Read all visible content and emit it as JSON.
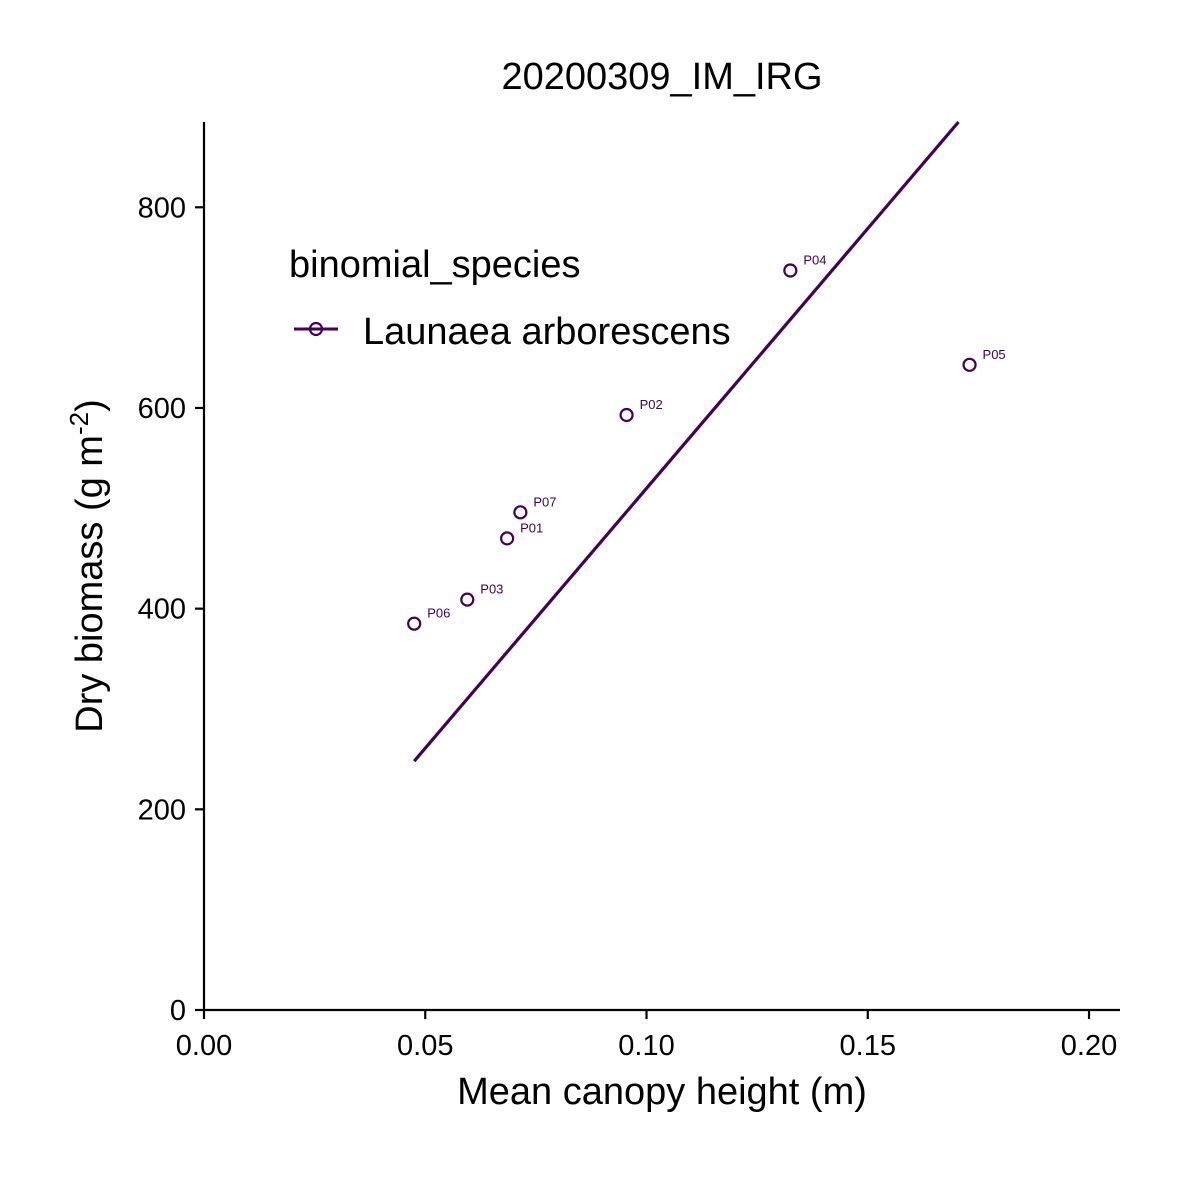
{
  "chart_data": {
    "type": "scatter",
    "title": "20200309_IM_IRG",
    "xlabel": "Mean canopy height (m)",
    "ylabel_main": "Dry biomass (g m",
    "ylabel_sup": "-2",
    "ylabel_close": ")",
    "xlim": [
      0.0,
      0.207
    ],
    "ylim": [
      0,
      885
    ],
    "x_ticks": [
      0.0,
      0.05,
      0.1,
      0.15,
      0.2
    ],
    "x_tick_labels": [
      "0.00",
      "0.05",
      "0.10",
      "0.15",
      "0.20"
    ],
    "y_ticks": [
      0,
      200,
      400,
      600,
      800
    ],
    "y_tick_labels": [
      "0",
      "200",
      "400",
      "600",
      "800"
    ],
    "grid": false,
    "legend": {
      "title": "binomial_species",
      "placement": "top-left",
      "entries": [
        "Launaea arborescens"
      ]
    },
    "series": [
      {
        "name": "Launaea arborescens",
        "color": "#440154",
        "points": [
          {
            "label": "P01",
            "x": 0.0685,
            "y": 470
          },
          {
            "label": "P02",
            "x": 0.0955,
            "y": 593
          },
          {
            "label": "P03",
            "x": 0.0595,
            "y": 409
          },
          {
            "label": "P04",
            "x": 0.1325,
            "y": 737
          },
          {
            "label": "P05",
            "x": 0.173,
            "y": 643
          },
          {
            "label": "P06",
            "x": 0.0475,
            "y": 385
          },
          {
            "label": "P07",
            "x": 0.0715,
            "y": 496
          }
        ],
        "fit_line": {
          "x": [
            0.0475,
            0.1705
          ],
          "y": [
            248,
            885
          ]
        }
      }
    ]
  }
}
